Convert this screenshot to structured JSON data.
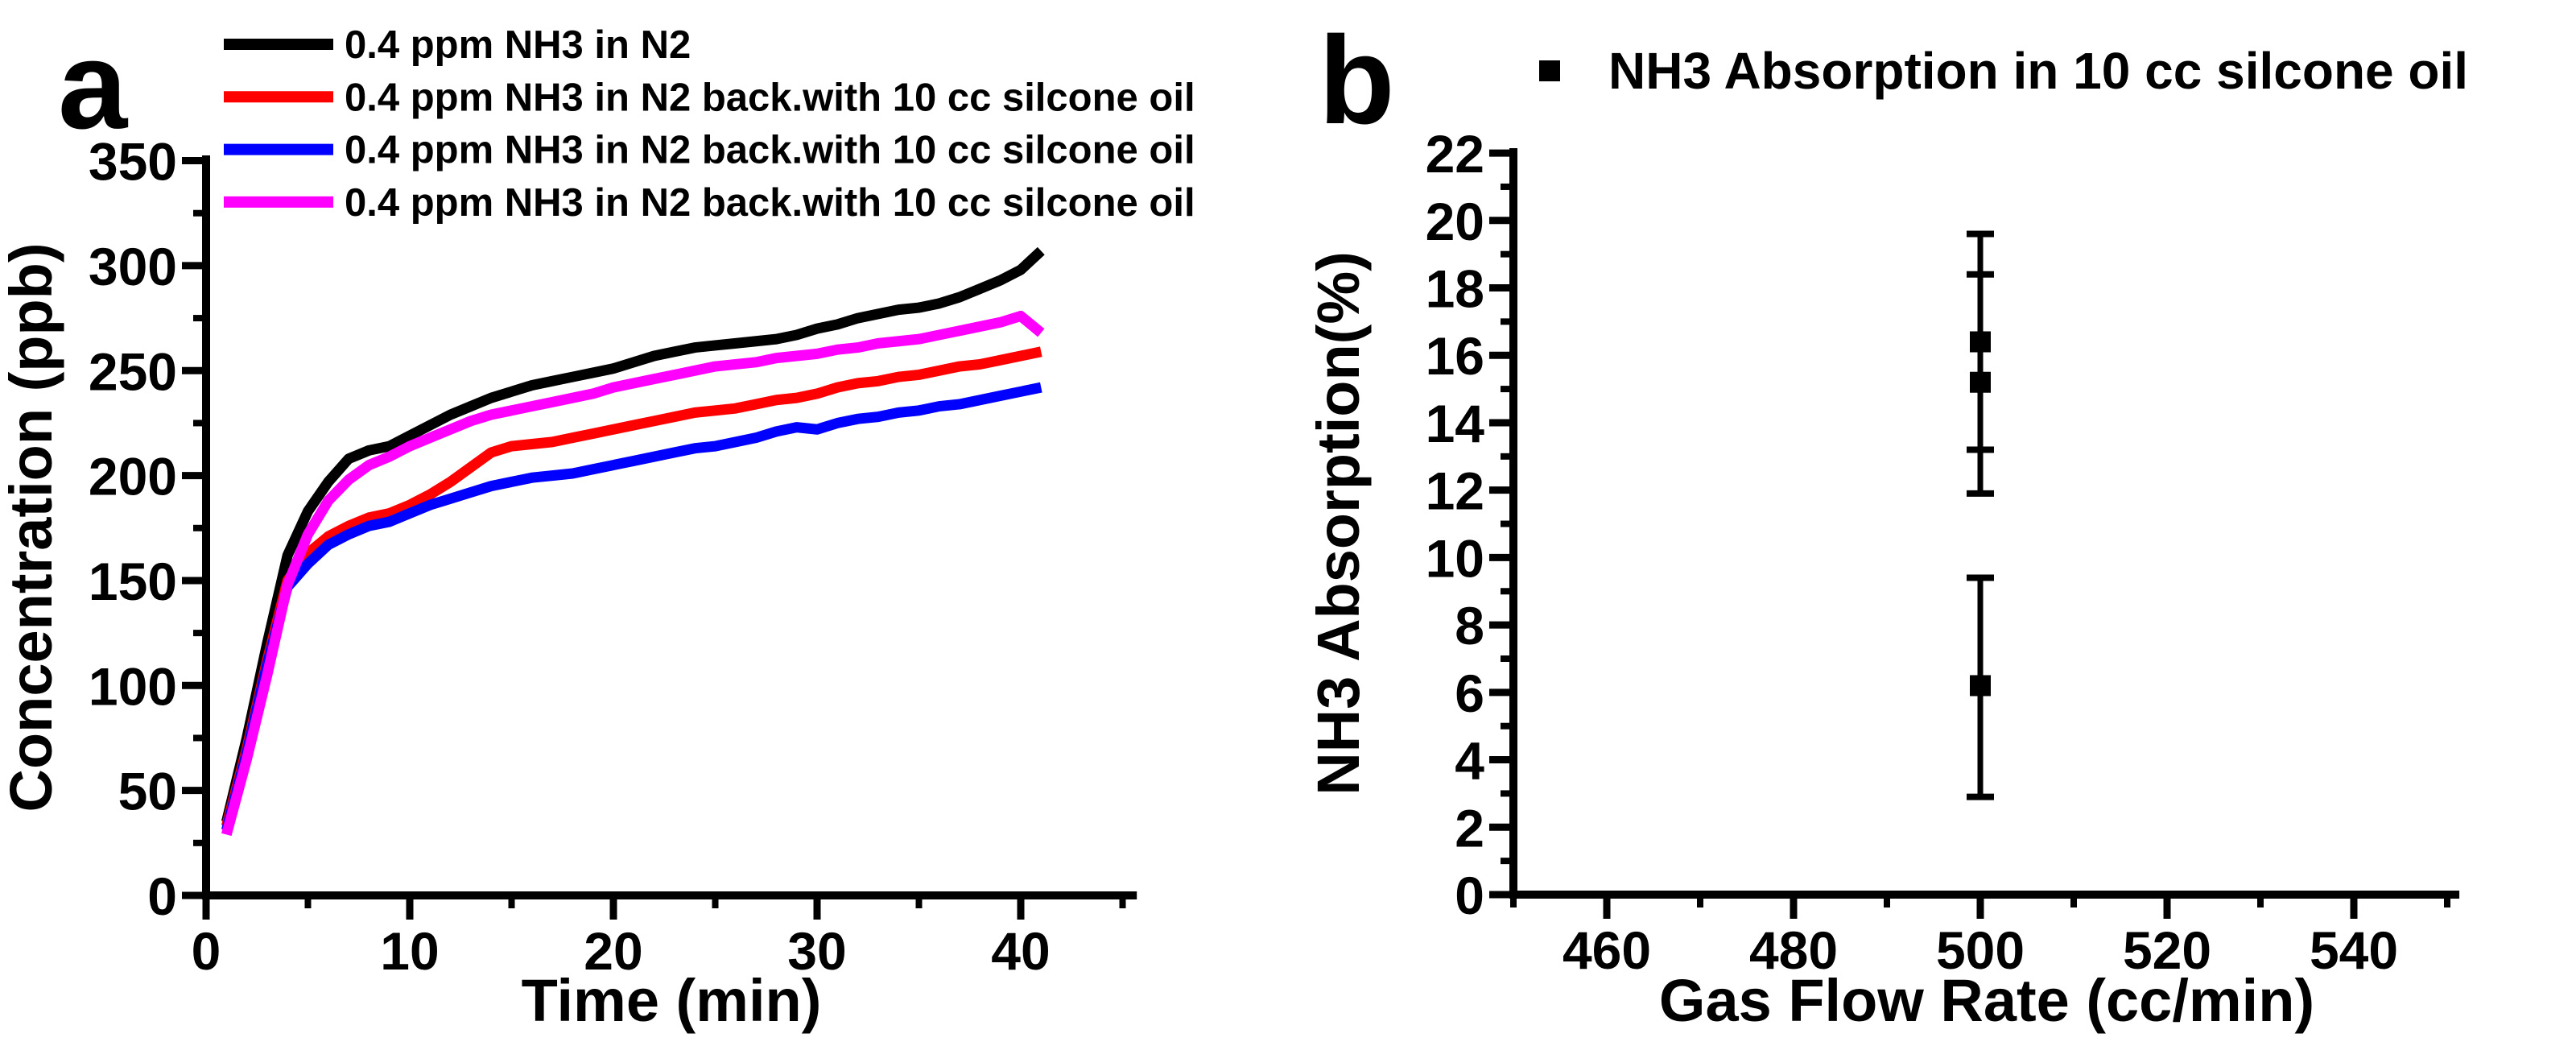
{
  "panel_labels": {
    "a": "a",
    "b": "b"
  },
  "colors": {
    "black": "#000000",
    "red": "#ff0000",
    "blue": "#0000ff",
    "magenta": "#ff00ff",
    "background": "#ffffff"
  },
  "chart_data": [
    {
      "type": "line",
      "panel": "a",
      "title": "",
      "xlabel": "Time (min)",
      "ylabel": "Concentration (ppb)",
      "xlim": [
        0,
        45.7
      ],
      "ylim": [
        0,
        350
      ],
      "xticks": [
        0,
        10,
        20,
        30,
        40
      ],
      "xminor": [
        5,
        15,
        25,
        35,
        45
      ],
      "yticks": [
        0,
        50,
        100,
        150,
        200,
        250,
        300,
        350
      ],
      "yminor": [
        25,
        75,
        125,
        175,
        225,
        275,
        325
      ],
      "grid": false,
      "legend_position": "top-left",
      "x": [
        1,
        2,
        3,
        4,
        5,
        6,
        7,
        8,
        9,
        10,
        11,
        12,
        13,
        14,
        15,
        16,
        17,
        18,
        19,
        20,
        21,
        22,
        23,
        24,
        25,
        26,
        27,
        28,
        29,
        30,
        31,
        32,
        33,
        34,
        35,
        36,
        37,
        38,
        39,
        40,
        41
      ],
      "series": [
        {
          "key": "black",
          "name": "0.4 ppm NH3 in N2",
          "color": "#000000",
          "y": [
            35,
            75,
            120,
            162,
            183,
            197,
            208,
            212,
            214,
            219,
            224,
            229,
            233,
            237,
            240,
            243,
            245,
            247,
            249,
            251,
            254,
            257,
            259,
            261,
            262,
            263,
            264,
            265,
            267,
            270,
            272,
            275,
            277,
            279,
            280,
            282,
            285,
            289,
            293,
            298,
            307
          ]
        },
        {
          "key": "red",
          "name": "0.4 ppm NH3 in N2 back.with 10 cc silcone oil",
          "color": "#ff0000",
          "y": [
            33,
            70,
            112,
            150,
            163,
            171,
            176,
            180,
            182,
            186,
            191,
            197,
            204,
            211,
            214,
            215,
            216,
            218,
            220,
            222,
            224,
            226,
            228,
            230,
            231,
            232,
            234,
            236,
            237,
            239,
            242,
            244,
            245,
            247,
            248,
            250,
            252,
            253,
            255,
            257,
            259
          ]
        },
        {
          "key": "blue",
          "name": "0.4 ppm NH3 in N2 back.with 10 cc silcone oil",
          "color": "#0000ff",
          "y": [
            31,
            68,
            110,
            147,
            158,
            167,
            172,
            176,
            178,
            182,
            186,
            189,
            192,
            195,
            197,
            199,
            200,
            201,
            203,
            205,
            207,
            209,
            211,
            213,
            214,
            216,
            218,
            221,
            223,
            222,
            225,
            227,
            228,
            230,
            231,
            233,
            234,
            236,
            238,
            240,
            242
          ]
        },
        {
          "key": "magenta",
          "name": "0.4 ppm NH3 in N2 back.with 10 cc silcone oil",
          "color": "#ff00ff",
          "y": [
            29,
            65,
            105,
            148,
            172,
            188,
            198,
            205,
            209,
            214,
            218,
            222,
            226,
            229,
            231,
            233,
            235,
            237,
            239,
            242,
            244,
            246,
            248,
            250,
            252,
            253,
            254,
            256,
            257,
            258,
            260,
            261,
            263,
            264,
            265,
            267,
            269,
            271,
            273,
            276,
            268
          ]
        }
      ]
    },
    {
      "type": "scatter",
      "panel": "b",
      "title": "",
      "xlabel": "Gas Flow Rate (cc/min)",
      "ylabel": "NH3 Absorption(%)",
      "xlim": [
        450,
        551.3
      ],
      "ylim": [
        0,
        22
      ],
      "xticks": [
        460,
        480,
        500,
        520,
        540
      ],
      "xminor": [
        450,
        470,
        490,
        510,
        530,
        550
      ],
      "yticks": [
        0,
        2,
        4,
        6,
        8,
        10,
        12,
        14,
        16,
        18,
        20,
        22
      ],
      "yminor": [
        1,
        3,
        5,
        7,
        9,
        11,
        13,
        15,
        17,
        19,
        21
      ],
      "grid": false,
      "legend_position": "top",
      "legend_label": "NH3 Absorption in 10 cc silcone oil",
      "marker": "square",
      "points": [
        {
          "x": 500,
          "y": 16.4,
          "err_high": 3.2,
          "err_low": 3.2
        },
        {
          "x": 500,
          "y": 15.2,
          "err_high": 3.2,
          "err_low": 3.3
        },
        {
          "x": 500,
          "y": 6.2,
          "err_high": 3.2,
          "err_low": 3.3
        }
      ]
    }
  ]
}
